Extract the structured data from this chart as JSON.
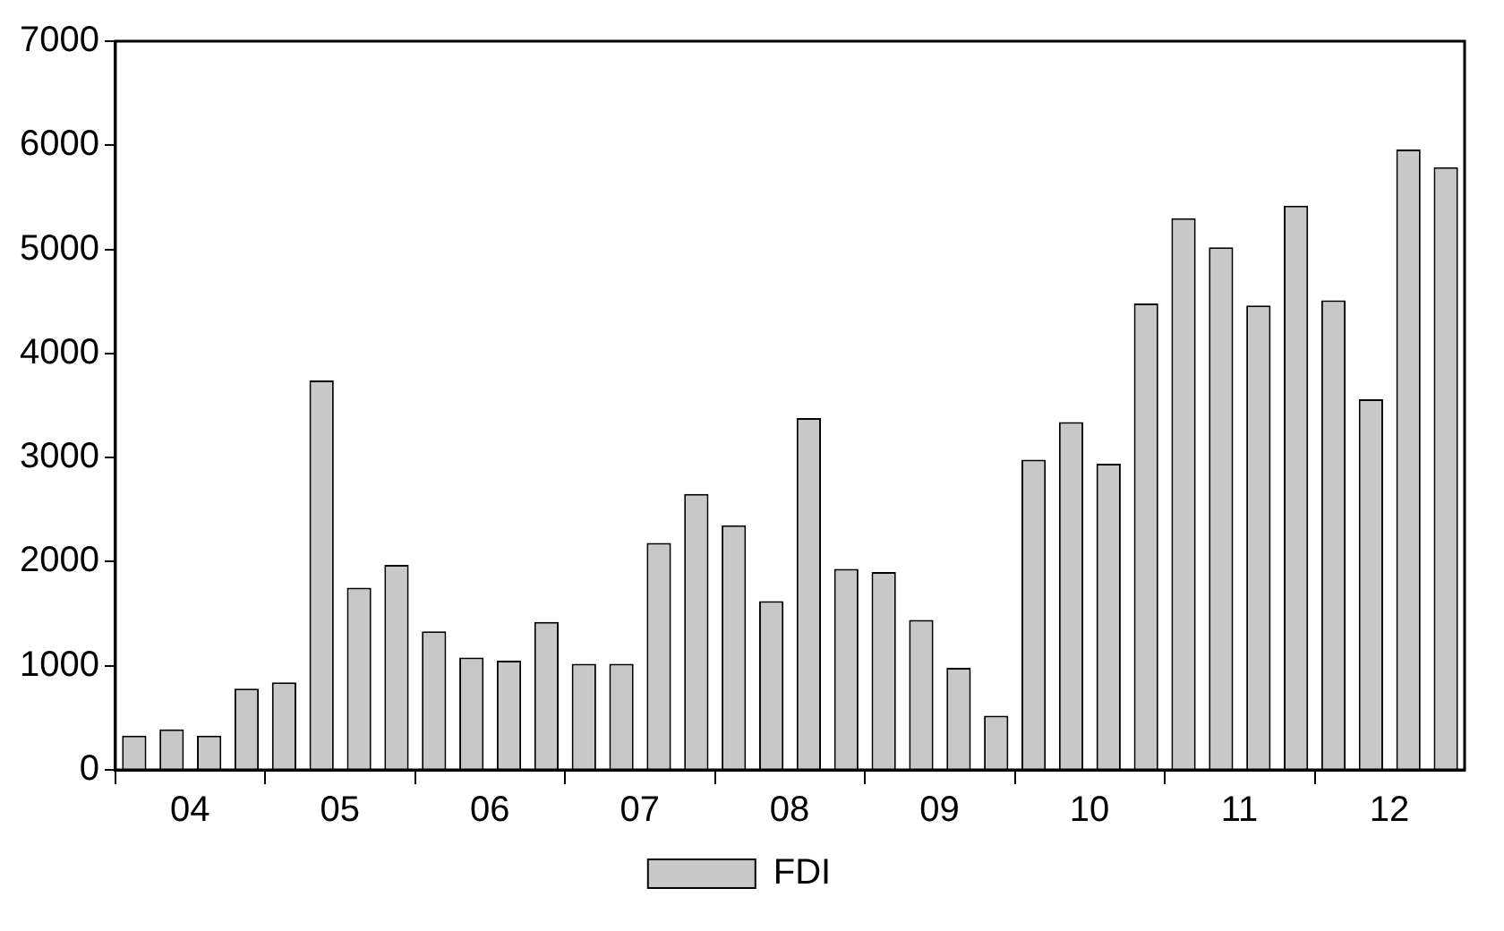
{
  "chart_data": {
    "type": "bar",
    "categories": [
      null,
      "04",
      null,
      null,
      null,
      "05",
      null,
      null,
      null,
      "06",
      null,
      null,
      null,
      "07",
      null,
      null,
      null,
      "08",
      null,
      null,
      null,
      "09",
      null,
      null,
      null,
      "10",
      null,
      null,
      null,
      "11",
      null,
      null,
      null,
      "12",
      null,
      null
    ],
    "series": [
      {
        "name": "FDI",
        "color": "#c8c8c8",
        "values": [
          330,
          390,
          330,
          780,
          840,
          3740,
          1750,
          1970,
          1330,
          1080,
          1050,
          1420,
          1020,
          1020,
          2180,
          2650,
          2350,
          1620,
          3380,
          1930,
          1900,
          1440,
          980,
          520,
          2980,
          3340,
          2940,
          4480,
          5300,
          5020,
          4460,
          5420,
          4510,
          3560,
          5960,
          5790
        ]
      }
    ],
    "ylim": [
      0,
      7000
    ],
    "yticks": [
      0,
      1000,
      2000,
      3000,
      4000,
      5000,
      6000,
      7000
    ],
    "grid": false,
    "legend": "bottom"
  }
}
